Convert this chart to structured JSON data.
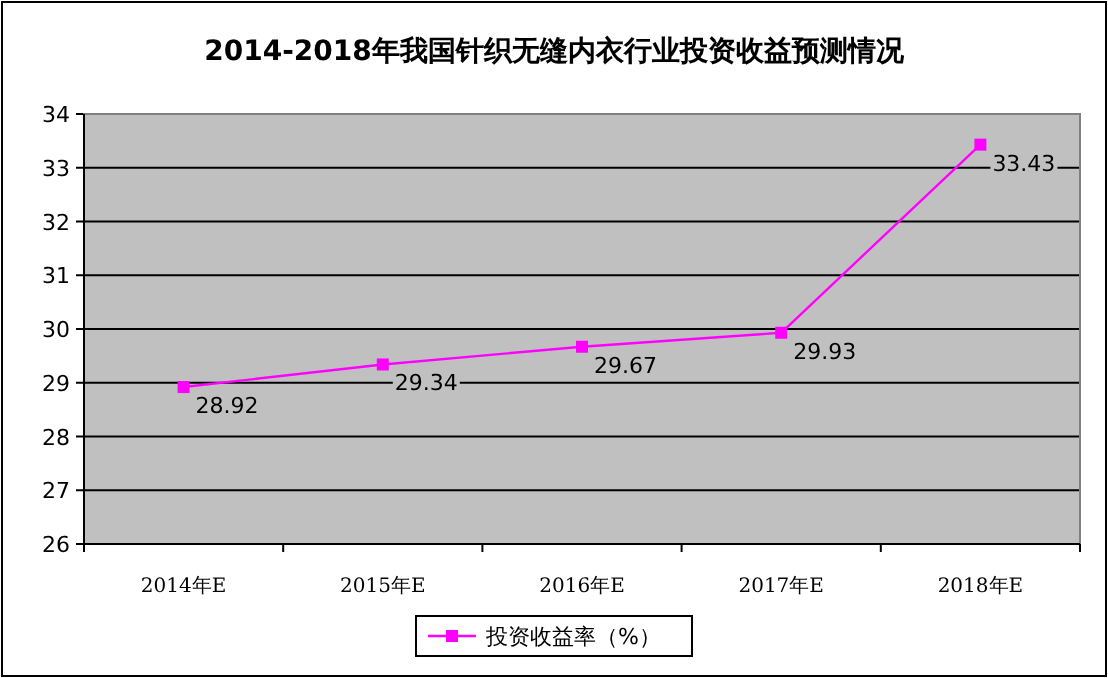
{
  "chart_data": {
    "type": "line",
    "title": "2014-2018年我国针织无缝内衣行业投资收益预测情况",
    "categories": [
      "2014年E",
      "2015年E",
      "2016年E",
      "2017年E",
      "2018年E"
    ],
    "series": [
      {
        "name": "投资收益率（%）",
        "color": "#ff00ff",
        "values": [
          28.92,
          29.34,
          29.67,
          29.93,
          33.43
        ]
      }
    ],
    "ylim": [
      26,
      34
    ],
    "yticks": [
      26,
      27,
      28,
      29,
      30,
      31,
      32,
      33,
      34
    ],
    "grid": "y",
    "legend": "bottom",
    "marker": "square",
    "line_style": "solid",
    "data_labels": true
  }
}
